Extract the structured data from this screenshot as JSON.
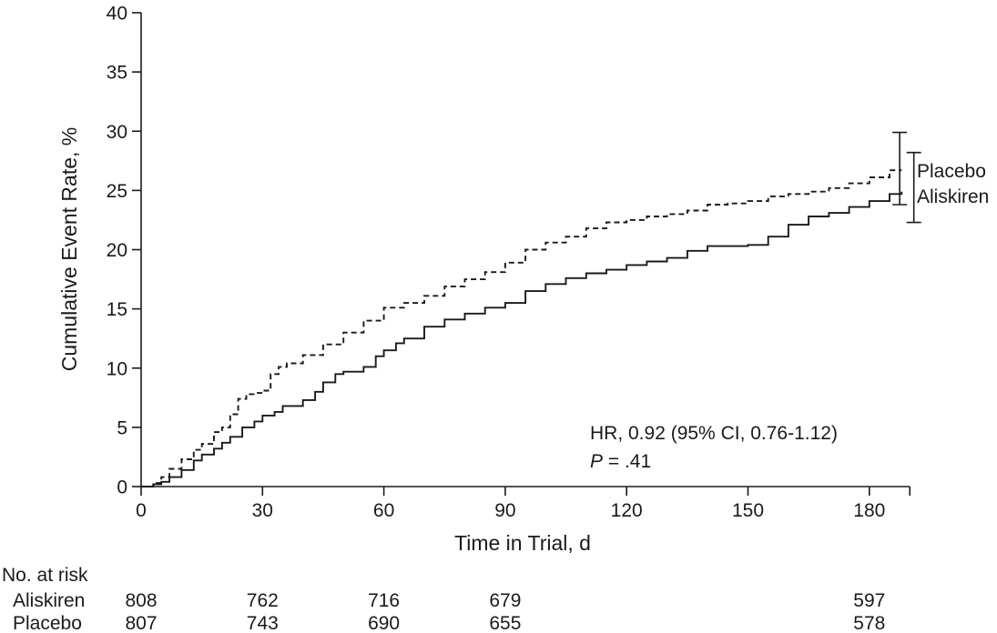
{
  "chart_data": {
    "type": "line",
    "subtype": "kaplan-meier cumulative event",
    "xlabel": "Time in Trial, d",
    "ylabel": "Cumulative Event Rate, %",
    "xlim": [
      0,
      190
    ],
    "ylim": [
      0,
      40
    ],
    "xticks": [
      0,
      30,
      60,
      90,
      120,
      150,
      180
    ],
    "yticks": [
      0,
      5,
      10,
      15,
      20,
      25,
      30,
      35,
      40
    ],
    "grid": false,
    "series": [
      {
        "name": "Placebo",
        "line_style": "dashed",
        "color": "#1a1a1a",
        "x": [
          0,
          3,
          5,
          7,
          10,
          13,
          15,
          18,
          20,
          22,
          24,
          26,
          28,
          30,
          32,
          34,
          36,
          40,
          45,
          50,
          55,
          60,
          65,
          70,
          75,
          80,
          85,
          90,
          95,
          100,
          105,
          110,
          115,
          120,
          125,
          130,
          135,
          140,
          145,
          150,
          155,
          160,
          165,
          170,
          175,
          180,
          185,
          188
        ],
        "y": [
          0,
          0.3,
          0.8,
          1.5,
          2.3,
          3.1,
          3.6,
          4.6,
          5.0,
          6.1,
          7.4,
          7.8,
          7.9,
          8.1,
          9.5,
          10.1,
          10.4,
          11.1,
          12.0,
          13.0,
          14.0,
          15.1,
          15.5,
          16.1,
          16.9,
          17.5,
          18.1,
          18.9,
          20.0,
          20.6,
          21.1,
          21.8,
          22.3,
          22.5,
          22.8,
          23.0,
          23.3,
          23.8,
          23.9,
          24.1,
          24.5,
          24.7,
          24.9,
          25.2,
          25.6,
          26.1,
          26.7,
          26.7
        ],
        "ci_at_end": [
          23.8,
          29.9
        ]
      },
      {
        "name": "Aliskiren",
        "line_style": "solid",
        "color": "#1a1a1a",
        "x": [
          0,
          3,
          5,
          7,
          10,
          13,
          15,
          18,
          20,
          22,
          25,
          28,
          30,
          33,
          35,
          40,
          43,
          45,
          48,
          50,
          55,
          58,
          60,
          63,
          65,
          70,
          75,
          80,
          85,
          90,
          95,
          100,
          105,
          110,
          115,
          120,
          125,
          130,
          135,
          140,
          145,
          150,
          155,
          160,
          165,
          170,
          175,
          180,
          185,
          188
        ],
        "y": [
          0,
          0.2,
          0.4,
          0.8,
          1.4,
          2.2,
          2.7,
          3.2,
          3.7,
          4.2,
          5.0,
          5.5,
          6.0,
          6.3,
          6.8,
          7.3,
          8.0,
          8.8,
          9.5,
          9.7,
          10.1,
          11.0,
          11.5,
          12.1,
          12.5,
          13.5,
          14.1,
          14.6,
          15.1,
          15.5,
          16.5,
          17.1,
          17.6,
          18.0,
          18.3,
          18.7,
          19.0,
          19.3,
          19.9,
          20.3,
          20.3,
          20.4,
          21.1,
          22.1,
          22.8,
          23.1,
          23.6,
          24.1,
          24.7,
          24.9
        ],
        "ci_at_end": [
          22.3,
          28.2
        ]
      }
    ],
    "annotations": {
      "hr_line": "HR, 0.92 (95% CI, 0.76-1.12)",
      "p_label": "P",
      "p_value": " = .41"
    },
    "at_risk": {
      "title": "No. at risk",
      "times": [
        0,
        30,
        60,
        90,
        120,
        150,
        180
      ],
      "rows": [
        {
          "label": "Aliskiren",
          "values": [
            "808",
            "762",
            "716",
            "679",
            "",
            "",
            "597"
          ]
        },
        {
          "label": "Placebo",
          "values": [
            "807",
            "743",
            "690",
            "655",
            "",
            "",
            "578"
          ]
        }
      ]
    }
  }
}
